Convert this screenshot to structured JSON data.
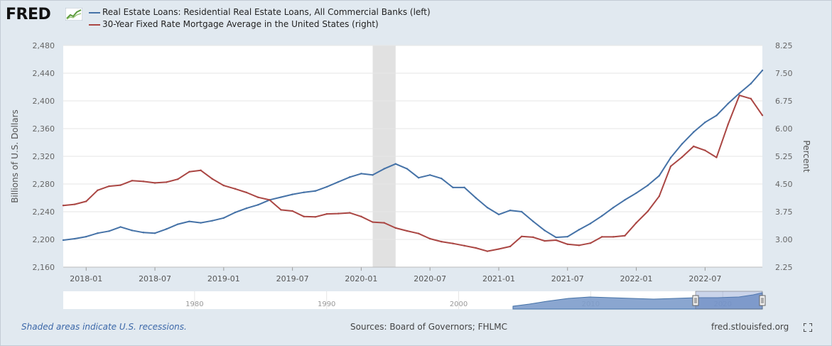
{
  "header": {
    "logo_text": "FRED",
    "legend": [
      {
        "label": "Real Estate Loans: Residential Real Estate Loans, All Commercial Banks (left)",
        "color": "#4572a7"
      },
      {
        "label": "30-Year Fixed Rate Mortgage Average in the United States (right)",
        "color": "#aa4643"
      }
    ]
  },
  "footer": {
    "recession_note": "Shaded areas indicate U.S. recessions.",
    "sources": "Sources: Board of Governors; FHLMC",
    "site": "fred.stlouisfed.org"
  },
  "navigator": {
    "year_labels": [
      "1980",
      "1990",
      "2000",
      "2010",
      "2020"
    ]
  },
  "chart_data": {
    "type": "line",
    "title": "",
    "xlabel": "",
    "x_range": [
      "2017-11",
      "2022-12"
    ],
    "x_tick_labels": [
      "2018-01",
      "2018-07",
      "2019-01",
      "2019-07",
      "2020-01",
      "2020-07",
      "2021-01",
      "2021-07",
      "2022-01",
      "2022-07"
    ],
    "left_axis": {
      "label": "Billions of U.S. Dollars",
      "ylim": [
        2160,
        2480
      ],
      "ticks": [
        "2,160",
        "2,200",
        "2,240",
        "2,280",
        "2,320",
        "2,360",
        "2,400",
        "2,440",
        "2,480"
      ]
    },
    "right_axis": {
      "label": "Percent",
      "ylim": [
        2.25,
        8.25
      ],
      "ticks": [
        "2.25",
        "3.00",
        "3.75",
        "4.50",
        "5.25",
        "6.00",
        "6.75",
        "7.50",
        "8.25"
      ]
    },
    "recession": {
      "start": "2020-02",
      "end": "2020-04"
    },
    "grid": true,
    "legend_position": "top-left",
    "series": [
      {
        "name": "Real Estate Loans: Residential Real Estate Loans, All Commercial Banks (left)",
        "axis": "left",
        "color": "#4572a7",
        "points": [
          [
            "2017-11",
            2199
          ],
          [
            "2017-12",
            2201
          ],
          [
            "2018-01",
            2204
          ],
          [
            "2018-02",
            2209
          ],
          [
            "2018-03",
            2212
          ],
          [
            "2018-04",
            2218
          ],
          [
            "2018-05",
            2213
          ],
          [
            "2018-06",
            2210
          ],
          [
            "2018-07",
            2209
          ],
          [
            "2018-08",
            2215
          ],
          [
            "2018-09",
            2222
          ],
          [
            "2018-10",
            2226
          ],
          [
            "2018-11",
            2224
          ],
          [
            "2018-12",
            2227
          ],
          [
            "2019-01",
            2231
          ],
          [
            "2019-02",
            2239
          ],
          [
            "2019-03",
            2245
          ],
          [
            "2019-04",
            2250
          ],
          [
            "2019-05",
            2257
          ],
          [
            "2019-06",
            2261
          ],
          [
            "2019-07",
            2265
          ],
          [
            "2019-08",
            2268
          ],
          [
            "2019-09",
            2270
          ],
          [
            "2019-10",
            2276
          ],
          [
            "2019-11",
            2283
          ],
          [
            "2019-12",
            2290
          ],
          [
            "2020-01",
            2295
          ],
          [
            "2020-02",
            2293
          ],
          [
            "2020-03",
            2302
          ],
          [
            "2020-04",
            2309
          ],
          [
            "2020-05",
            2302
          ],
          [
            "2020-06",
            2289
          ],
          [
            "2020-07",
            2293
          ],
          [
            "2020-08",
            2288
          ],
          [
            "2020-09",
            2275
          ],
          [
            "2020-10",
            2275
          ],
          [
            "2020-11",
            2260
          ],
          [
            "2020-12",
            2246
          ],
          [
            "2021-01",
            2236
          ],
          [
            "2021-02",
            2242
          ],
          [
            "2021-03",
            2240
          ],
          [
            "2021-04",
            2226
          ],
          [
            "2021-05",
            2213
          ],
          [
            "2021-06",
            2203
          ],
          [
            "2021-07",
            2204
          ],
          [
            "2021-08",
            2214
          ],
          [
            "2021-09",
            2223
          ],
          [
            "2021-10",
            2234
          ],
          [
            "2021-11",
            2246
          ],
          [
            "2021-12",
            2257
          ],
          [
            "2022-01",
            2267
          ],
          [
            "2022-02",
            2278
          ],
          [
            "2022-03",
            2292
          ],
          [
            "2022-04",
            2318
          ],
          [
            "2022-05",
            2338
          ],
          [
            "2022-06",
            2355
          ],
          [
            "2022-07",
            2369
          ],
          [
            "2022-08",
            2379
          ],
          [
            "2022-09",
            2396
          ],
          [
            "2022-10",
            2411
          ],
          [
            "2022-11",
            2425
          ],
          [
            "2022-12",
            2444
          ]
        ]
      },
      {
        "name": "30-Year Fixed Rate Mortgage Average in the United States (right)",
        "axis": "right",
        "color": "#aa4643",
        "points": [
          [
            "2017-11",
            3.92
          ],
          [
            "2017-12",
            3.95
          ],
          [
            "2018-01",
            4.03
          ],
          [
            "2018-02",
            4.33
          ],
          [
            "2018-03",
            4.44
          ],
          [
            "2018-04",
            4.47
          ],
          [
            "2018-05",
            4.59
          ],
          [
            "2018-06",
            4.57
          ],
          [
            "2018-07",
            4.53
          ],
          [
            "2018-08",
            4.55
          ],
          [
            "2018-09",
            4.63
          ],
          [
            "2018-10",
            4.83
          ],
          [
            "2018-11",
            4.87
          ],
          [
            "2018-12",
            4.64
          ],
          [
            "2019-01",
            4.46
          ],
          [
            "2019-02",
            4.37
          ],
          [
            "2019-03",
            4.27
          ],
          [
            "2019-04",
            4.14
          ],
          [
            "2019-05",
            4.07
          ],
          [
            "2019-06",
            3.8
          ],
          [
            "2019-07",
            3.77
          ],
          [
            "2019-08",
            3.62
          ],
          [
            "2019-09",
            3.61
          ],
          [
            "2019-10",
            3.69
          ],
          [
            "2019-11",
            3.7
          ],
          [
            "2019-12",
            3.72
          ],
          [
            "2020-01",
            3.62
          ],
          [
            "2020-02",
            3.47
          ],
          [
            "2020-03",
            3.45
          ],
          [
            "2020-04",
            3.31
          ],
          [
            "2020-05",
            3.23
          ],
          [
            "2020-06",
            3.16
          ],
          [
            "2020-07",
            3.02
          ],
          [
            "2020-08",
            2.94
          ],
          [
            "2020-09",
            2.89
          ],
          [
            "2020-10",
            2.83
          ],
          [
            "2020-11",
            2.77
          ],
          [
            "2020-12",
            2.68
          ],
          [
            "2021-01",
            2.74
          ],
          [
            "2021-02",
            2.81
          ],
          [
            "2021-03",
            3.08
          ],
          [
            "2021-04",
            3.06
          ],
          [
            "2021-05",
            2.96
          ],
          [
            "2021-06",
            2.98
          ],
          [
            "2021-07",
            2.87
          ],
          [
            "2021-08",
            2.84
          ],
          [
            "2021-09",
            2.9
          ],
          [
            "2021-10",
            3.07
          ],
          [
            "2021-11",
            3.07
          ],
          [
            "2021-12",
            3.1
          ],
          [
            "2022-01",
            3.45
          ],
          [
            "2022-02",
            3.76
          ],
          [
            "2022-03",
            4.17
          ],
          [
            "2022-04",
            4.98
          ],
          [
            "2022-05",
            5.23
          ],
          [
            "2022-06",
            5.52
          ],
          [
            "2022-07",
            5.41
          ],
          [
            "2022-08",
            5.22
          ],
          [
            "2022-09",
            6.11
          ],
          [
            "2022-10",
            6.9
          ],
          [
            "2022-11",
            6.81
          ],
          [
            "2022-12",
            6.36
          ]
        ]
      }
    ]
  }
}
